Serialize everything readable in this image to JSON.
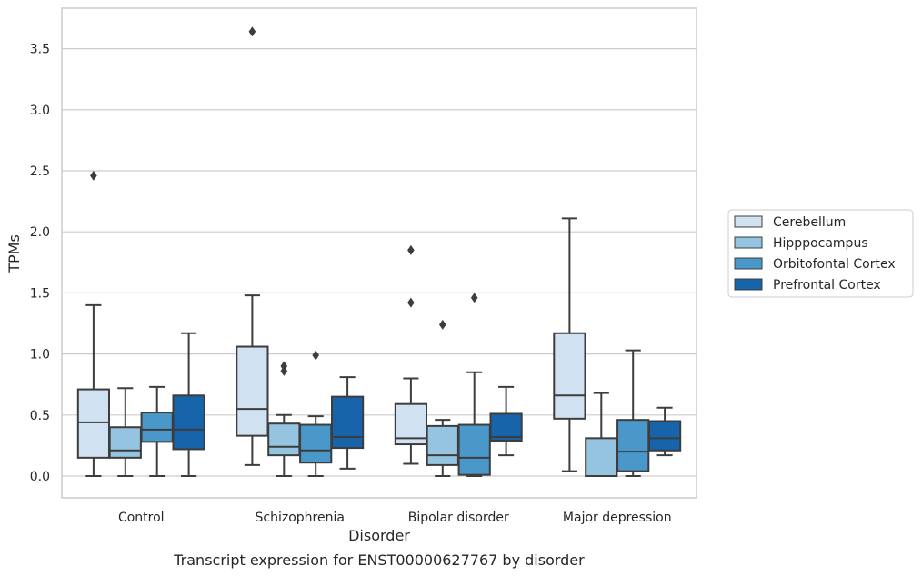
{
  "chart_data": {
    "type": "box",
    "title": "",
    "caption": "Transcript expression for ENST00000627767 by disorder",
    "xlabel": "Disorder",
    "ylabel": "TPMs",
    "ylim": [
      -0.18,
      3.86
    ],
    "yticks": [
      0.0,
      0.5,
      1.0,
      1.5,
      2.0,
      2.5,
      3.0,
      3.5
    ],
    "ytick_labels": [
      "0.0",
      "0.5",
      "1.0",
      "1.5",
      "2.0",
      "2.5",
      "3.0",
      "3.5"
    ],
    "grid": "horizontal",
    "legend_position": "right",
    "categories": [
      "Control",
      "Schizophrenia",
      "Bipolar disorder",
      "Major depression"
    ],
    "series": [
      {
        "name": "Cerebellum",
        "color": "#d0e1f2",
        "boxes": [
          {
            "min": 0.0,
            "q1": 0.15,
            "median": 0.44,
            "q3": 0.71,
            "max": 1.4,
            "outliers": [
              2.46
            ]
          },
          {
            "min": 0.09,
            "q1": 0.33,
            "median": 0.55,
            "q3": 1.06,
            "max": 1.48,
            "outliers": [
              3.64
            ]
          },
          {
            "min": 0.1,
            "q1": 0.26,
            "median": 0.31,
            "q3": 0.59,
            "max": 0.8,
            "outliers": [
              1.42,
              1.85
            ]
          },
          {
            "min": 0.04,
            "q1": 0.47,
            "median": 0.66,
            "q3": 1.17,
            "max": 2.11,
            "outliers": []
          }
        ]
      },
      {
        "name": "Hipppocampus",
        "color": "#94c4df",
        "boxes": [
          {
            "min": 0.0,
            "q1": 0.15,
            "median": 0.21,
            "q3": 0.4,
            "max": 0.72,
            "outliers": []
          },
          {
            "min": 0.0,
            "q1": 0.17,
            "median": 0.24,
            "q3": 0.43,
            "max": 0.5,
            "outliers": [
              0.86,
              0.9
            ]
          },
          {
            "min": 0.0,
            "q1": 0.09,
            "median": 0.17,
            "q3": 0.41,
            "max": 0.46,
            "outliers": [
              1.24
            ]
          },
          {
            "min": 0.0,
            "q1": 0.0,
            "median": 0.0,
            "q3": 0.31,
            "max": 0.68,
            "outliers": []
          }
        ]
      },
      {
        "name": "Orbitofontal Cortex",
        "color": "#4a98c9",
        "boxes": [
          {
            "min": 0.0,
            "q1": 0.28,
            "median": 0.38,
            "q3": 0.52,
            "max": 0.73,
            "outliers": []
          },
          {
            "min": 0.0,
            "q1": 0.11,
            "median": 0.21,
            "q3": 0.42,
            "max": 0.49,
            "outliers": [
              0.99
            ]
          },
          {
            "min": 0.0,
            "q1": 0.01,
            "median": 0.15,
            "q3": 0.42,
            "max": 0.85,
            "outliers": [
              1.46
            ]
          },
          {
            "min": 0.0,
            "q1": 0.04,
            "median": 0.2,
            "q3": 0.46,
            "max": 1.03,
            "outliers": []
          }
        ]
      },
      {
        "name": "Prefrontal Cortex",
        "color": "#1764ab",
        "boxes": [
          {
            "min": 0.0,
            "q1": 0.22,
            "median": 0.38,
            "q3": 0.66,
            "max": 1.17,
            "outliers": []
          },
          {
            "min": 0.06,
            "q1": 0.23,
            "median": 0.32,
            "q3": 0.65,
            "max": 0.81,
            "outliers": []
          },
          {
            "min": 0.17,
            "q1": 0.29,
            "median": 0.32,
            "q3": 0.51,
            "max": 0.73,
            "outliers": []
          },
          {
            "min": 0.17,
            "q1": 0.21,
            "median": 0.31,
            "q3": 0.45,
            "max": 0.56,
            "outliers": []
          }
        ]
      }
    ]
  }
}
